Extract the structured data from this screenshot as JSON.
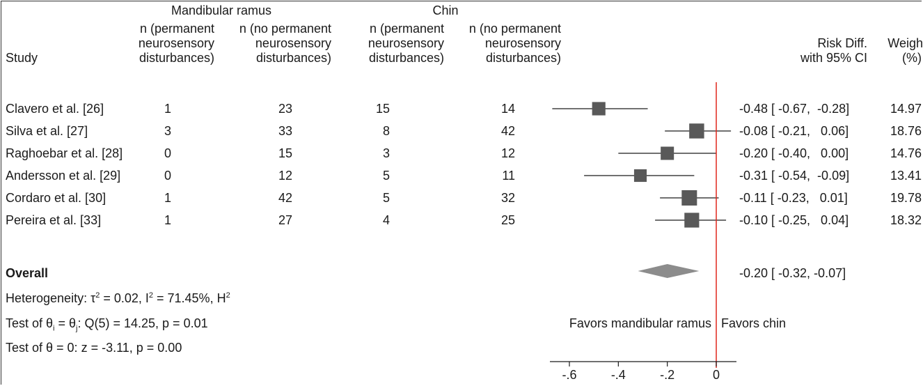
{
  "headers": {
    "group1": "Mandibular ramus",
    "group2": "Chin",
    "study": "Study",
    "col1": [
      "n (permanent",
      "neurosensory",
      "disturbances)"
    ],
    "col2": [
      "n (no permanent",
      "neurosensory",
      "disturbances)"
    ],
    "col3": [
      "n (permanent",
      "neurosensory",
      "disturbances)"
    ],
    "col4": [
      "n (no permanent",
      "neurosensory",
      "disturbances)"
    ],
    "effect": [
      "Risk Diff.",
      "with 95% CI"
    ],
    "weight": [
      "Weigh",
      "(%)"
    ]
  },
  "rows": [
    {
      "study": "Clavero et al. [26]",
      "n1": "1",
      "n2": "23",
      "n3": "15",
      "n4": "14",
      "ci_text": "-0.48 [ -0.67,  -0.28]",
      "weight": "14.97"
    },
    {
      "study": "Silva et al. [27]",
      "n1": "3",
      "n2": "33",
      "n3": "8",
      "n4": "42",
      "ci_text": "-0.08 [ -0.21,   0.06]",
      "weight": "18.76"
    },
    {
      "study": "Raghoebar et al. [28]",
      "n1": "0",
      "n2": "15",
      "n3": "3",
      "n4": "12",
      "ci_text": "-0.20 [ -0.40,   0.00]",
      "weight": "14.76"
    },
    {
      "study": "Andersson et al. [29]",
      "n1": "0",
      "n2": "12",
      "n3": "5",
      "n4": "11",
      "ci_text": "-0.31 [ -0.54,  -0.09]",
      "weight": "13.41"
    },
    {
      "study": "Cordaro et al. [30]",
      "n1": "1",
      "n2": "42",
      "n3": "5",
      "n4": "32",
      "ci_text": "-0.11 [ -0.23,   0.01]",
      "weight": "19.78"
    },
    {
      "study": "Pereira et al. [33]",
      "n1": "1",
      "n2": "27",
      "n3": "4",
      "n4": "25",
      "ci_text": "-0.10 [ -0.25,   0.04]",
      "weight": "18.32"
    }
  ],
  "overall": {
    "label": "Overall",
    "ci_text": "-0.20 [ -0.32, -0.07]"
  },
  "stats": {
    "heterogeneity": {
      "prefix": "Heterogeneity: τ",
      "tau_exp": "2",
      "mid": " = 0.02, I",
      "i_exp": "2",
      "rest": " = 71.45%, H",
      "h_exp": "2"
    },
    "test_q": {
      "prefix": "Test of θ",
      "sub_i": "i",
      "mid": " = θ",
      "sub_j": "j",
      "rest": ": Q(5) = 14.25, p = 0.01"
    },
    "test_z": "Test of θ = 0: z = -3.11, p = 0.00"
  },
  "favors": {
    "left": "Favors mandibular ramus",
    "right": "Favors chin"
  },
  "chart_data": {
    "type": "forest",
    "x_ticks": [
      "-.6",
      "-.4",
      "-.2",
      "0"
    ],
    "x_tick_values": [
      -0.6,
      -0.4,
      -0.2,
      0
    ],
    "xlim": [
      -0.7,
      0.1
    ],
    "reference_line": 0,
    "reference_color": "#e0261c",
    "marker_color": "#595959",
    "diamond_color": "#8c8c8c",
    "studies": [
      {
        "name": "Clavero et al. [26]",
        "rd": -0.48,
        "lo": -0.67,
        "hi": -0.28,
        "weight": 14.97
      },
      {
        "name": "Silva et al. [27]",
        "rd": -0.08,
        "lo": -0.21,
        "hi": 0.06,
        "weight": 18.76
      },
      {
        "name": "Raghoebar et al. [28]",
        "rd": -0.2,
        "lo": -0.4,
        "hi": 0.0,
        "weight": 14.76
      },
      {
        "name": "Andersson et al. [29]",
        "rd": -0.31,
        "lo": -0.54,
        "hi": -0.09,
        "weight": 13.41
      },
      {
        "name": "Cordaro et al. [30]",
        "rd": -0.11,
        "lo": -0.23,
        "hi": 0.01,
        "weight": 19.78
      },
      {
        "name": "Pereira et al. [33]",
        "rd": -0.1,
        "lo": -0.25,
        "hi": 0.04,
        "weight": 18.32
      }
    ],
    "overall": {
      "rd": -0.2,
      "lo": -0.32,
      "hi": -0.07
    }
  }
}
